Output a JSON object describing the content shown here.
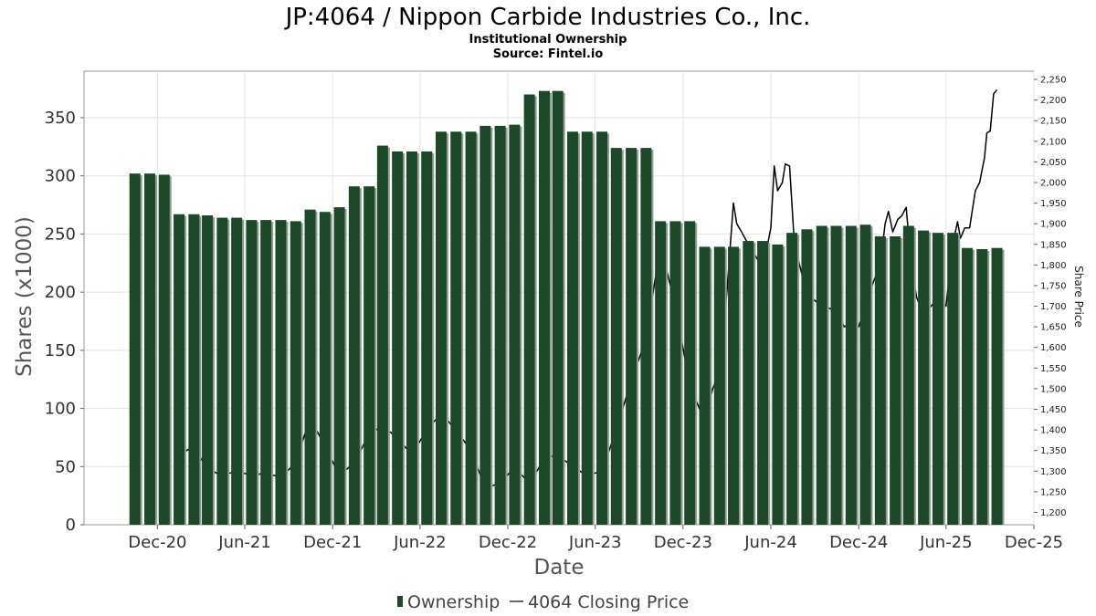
{
  "header": {
    "title": "JP:4064 / Nippon Carbide Industries Co., Inc.",
    "subtitle": "Institutional Ownership",
    "source": "Source: Fintel.io"
  },
  "legend": {
    "ownership_label": "Ownership",
    "price_label": "4064 Closing Price"
  },
  "colors": {
    "bar": "#1c4a28",
    "bar_shadow": "#9a9a9a",
    "line": "#000000",
    "grid": "#e2e2e2",
    "frame": "#999999"
  },
  "chart_data": {
    "type": "bar",
    "title": "JP:4064 / Nippon Carbide Industries Co., Inc.",
    "xlabel": "Date",
    "ylabel": "Shares (x1000)",
    "y2label": "Share Price",
    "ylim": [
      0,
      390
    ],
    "y2lim": [
      1170,
      2270
    ],
    "yticks": [
      0,
      50,
      100,
      150,
      200,
      250,
      300,
      350
    ],
    "y2ticks": [
      1200,
      1250,
      1300,
      1350,
      1400,
      1450,
      1500,
      1550,
      1600,
      1650,
      1700,
      1750,
      1800,
      1850,
      1900,
      1950,
      2000,
      2050,
      2100,
      2150,
      2200,
      2250
    ],
    "y2tick_labels": [
      "1,200",
      "1,250",
      "1,300",
      "1,350",
      "1,400",
      "1,450",
      "1,500",
      "1,550",
      "1,600",
      "1,650",
      "1,700",
      "1,750",
      "1,800",
      "1,850",
      "1,900",
      "1,950",
      "2,000",
      "2,050",
      "2,100",
      "2,150",
      "2,200",
      "2,250"
    ],
    "xlim": [
      "2020-07-01",
      "2025-12-01"
    ],
    "xticks": [
      {
        "date": "2020-12-01",
        "label": "Dec-20"
      },
      {
        "date": "2021-06-01",
        "label": "Jun-21"
      },
      {
        "date": "2021-12-01",
        "label": "Dec-21"
      },
      {
        "date": "2022-06-01",
        "label": "Jun-22"
      },
      {
        "date": "2022-12-01",
        "label": "Dec-22"
      },
      {
        "date": "2023-06-01",
        "label": "Jun-23"
      },
      {
        "date": "2023-12-01",
        "label": "Dec-23"
      },
      {
        "date": "2024-06-01",
        "label": "Jun-24"
      },
      {
        "date": "2024-12-01",
        "label": "Dec-24"
      },
      {
        "date": "2025-06-01",
        "label": "Jun-25"
      },
      {
        "date": "2025-12-01",
        "label": "Dec-25"
      }
    ],
    "grid": true,
    "legend_position": "bottom-center",
    "series": [
      {
        "name": "Ownership",
        "type": "bar",
        "axis": "left",
        "points": [
          {
            "x": "2020-10-15",
            "y": 302
          },
          {
            "x": "2020-11-15",
            "y": 302
          },
          {
            "x": "2020-12-15",
            "y": 301
          },
          {
            "x": "2021-01-15",
            "y": 267
          },
          {
            "x": "2021-02-15",
            "y": 267
          },
          {
            "x": "2021-03-15",
            "y": 266
          },
          {
            "x": "2021-04-15",
            "y": 264
          },
          {
            "x": "2021-05-15",
            "y": 264
          },
          {
            "x": "2021-06-15",
            "y": 262
          },
          {
            "x": "2021-07-15",
            "y": 262
          },
          {
            "x": "2021-08-15",
            "y": 262
          },
          {
            "x": "2021-09-15",
            "y": 261
          },
          {
            "x": "2021-10-15",
            "y": 271
          },
          {
            "x": "2021-11-15",
            "y": 269
          },
          {
            "x": "2021-12-15",
            "y": 273
          },
          {
            "x": "2022-01-15",
            "y": 291
          },
          {
            "x": "2022-02-15",
            "y": 291
          },
          {
            "x": "2022-03-15",
            "y": 326
          },
          {
            "x": "2022-04-15",
            "y": 321
          },
          {
            "x": "2022-05-15",
            "y": 321
          },
          {
            "x": "2022-06-15",
            "y": 321
          },
          {
            "x": "2022-07-15",
            "y": 338
          },
          {
            "x": "2022-08-15",
            "y": 338
          },
          {
            "x": "2022-09-15",
            "y": 338
          },
          {
            "x": "2022-10-15",
            "y": 343
          },
          {
            "x": "2022-11-15",
            "y": 343
          },
          {
            "x": "2022-12-15",
            "y": 344
          },
          {
            "x": "2023-01-15",
            "y": 370
          },
          {
            "x": "2023-02-15",
            "y": 373
          },
          {
            "x": "2023-03-15",
            "y": 373
          },
          {
            "x": "2023-04-15",
            "y": 338
          },
          {
            "x": "2023-05-15",
            "y": 338
          },
          {
            "x": "2023-06-15",
            "y": 338
          },
          {
            "x": "2023-07-15",
            "y": 324
          },
          {
            "x": "2023-08-15",
            "y": 324
          },
          {
            "x": "2023-09-15",
            "y": 324
          },
          {
            "x": "2023-10-15",
            "y": 261
          },
          {
            "x": "2023-11-15",
            "y": 261
          },
          {
            "x": "2023-12-15",
            "y": 261
          },
          {
            "x": "2024-01-15",
            "y": 239
          },
          {
            "x": "2024-02-15",
            "y": 239
          },
          {
            "x": "2024-03-15",
            "y": 239
          },
          {
            "x": "2024-04-15",
            "y": 244
          },
          {
            "x": "2024-05-15",
            "y": 244
          },
          {
            "x": "2024-06-15",
            "y": 241
          },
          {
            "x": "2024-07-15",
            "y": 251
          },
          {
            "x": "2024-08-15",
            "y": 254
          },
          {
            "x": "2024-09-15",
            "y": 257
          },
          {
            "x": "2024-10-15",
            "y": 257
          },
          {
            "x": "2024-11-15",
            "y": 257
          },
          {
            "x": "2024-12-15",
            "y": 258
          },
          {
            "x": "2025-01-15",
            "y": 248
          },
          {
            "x": "2025-02-15",
            "y": 248
          },
          {
            "x": "2025-03-15",
            "y": 257
          },
          {
            "x": "2025-04-15",
            "y": 253
          },
          {
            "x": "2025-05-15",
            "y": 251
          },
          {
            "x": "2025-06-15",
            "y": 251
          },
          {
            "x": "2025-07-15",
            "y": 238
          },
          {
            "x": "2025-08-15",
            "y": 237
          },
          {
            "x": "2025-09-15",
            "y": 238
          }
        ]
      },
      {
        "name": "4064 Closing Price",
        "type": "line",
        "axis": "right",
        "points": [
          {
            "x": "2021-01-15",
            "y": 1340
          },
          {
            "x": "2021-02-15",
            "y": 1360
          },
          {
            "x": "2021-03-15",
            "y": 1305
          },
          {
            "x": "2021-04-15",
            "y": 1290
          },
          {
            "x": "2021-05-15",
            "y": 1300
          },
          {
            "x": "2021-06-15",
            "y": 1290
          },
          {
            "x": "2021-07-15",
            "y": 1295
          },
          {
            "x": "2021-08-15",
            "y": 1285
          },
          {
            "x": "2021-09-15",
            "y": 1320
          },
          {
            "x": "2021-10-15",
            "y": 1430
          },
          {
            "x": "2021-11-15",
            "y": 1360
          },
          {
            "x": "2021-12-15",
            "y": 1290
          },
          {
            "x": "2022-01-15",
            "y": 1320
          },
          {
            "x": "2022-02-15",
            "y": 1390
          },
          {
            "x": "2022-03-15",
            "y": 1410
          },
          {
            "x": "2022-04-15",
            "y": 1380
          },
          {
            "x": "2022-05-15",
            "y": 1340
          },
          {
            "x": "2022-06-15",
            "y": 1400
          },
          {
            "x": "2022-07-15",
            "y": 1440
          },
          {
            "x": "2022-08-15",
            "y": 1400
          },
          {
            "x": "2022-09-15",
            "y": 1350
          },
          {
            "x": "2022-10-15",
            "y": 1260
          },
          {
            "x": "2022-11-15",
            "y": 1270
          },
          {
            "x": "2022-12-15",
            "y": 1310
          },
          {
            "x": "2023-01-15",
            "y": 1270
          },
          {
            "x": "2023-02-15",
            "y": 1330
          },
          {
            "x": "2023-03-15",
            "y": 1340
          },
          {
            "x": "2023-04-15",
            "y": 1310
          },
          {
            "x": "2023-05-15",
            "y": 1290
          },
          {
            "x": "2023-06-15",
            "y": 1300
          },
          {
            "x": "2023-07-15",
            "y": 1400
          },
          {
            "x": "2023-08-15",
            "y": 1520
          },
          {
            "x": "2023-09-15",
            "y": 1620
          },
          {
            "x": "2023-10-15",
            "y": 1850
          },
          {
            "x": "2023-11-15",
            "y": 1700
          },
          {
            "x": "2023-12-15",
            "y": 1510
          },
          {
            "x": "2024-01-15",
            "y": 1420
          },
          {
            "x": "2024-02-01",
            "y": 1500
          },
          {
            "x": "2024-02-15",
            "y": 1540
          },
          {
            "x": "2024-03-01",
            "y": 1730
          },
          {
            "x": "2024-03-15",
            "y": 1950
          },
          {
            "x": "2024-03-22",
            "y": 1900
          },
          {
            "x": "2024-04-01",
            "y": 1880
          },
          {
            "x": "2024-04-15",
            "y": 1850
          },
          {
            "x": "2024-05-01",
            "y": 1820
          },
          {
            "x": "2024-05-15",
            "y": 1790
          },
          {
            "x": "2024-06-01",
            "y": 1890
          },
          {
            "x": "2024-06-08",
            "y": 2040
          },
          {
            "x": "2024-06-15",
            "y": 1980
          },
          {
            "x": "2024-06-25",
            "y": 2000
          },
          {
            "x": "2024-07-01",
            "y": 2045
          },
          {
            "x": "2024-07-10",
            "y": 2040
          },
          {
            "x": "2024-07-20",
            "y": 1850
          },
          {
            "x": "2024-08-15",
            "y": 1730
          },
          {
            "x": "2024-09-15",
            "y": 1700
          },
          {
            "x": "2024-10-15",
            "y": 1690
          },
          {
            "x": "2024-11-01",
            "y": 1650
          },
          {
            "x": "2024-11-15",
            "y": 1660
          },
          {
            "x": "2024-12-01",
            "y": 1650
          },
          {
            "x": "2024-12-15",
            "y": 1700
          },
          {
            "x": "2025-01-01",
            "y": 1760
          },
          {
            "x": "2025-01-15",
            "y": 1800
          },
          {
            "x": "2025-01-25",
            "y": 1900
          },
          {
            "x": "2025-02-01",
            "y": 1930
          },
          {
            "x": "2025-02-10",
            "y": 1880
          },
          {
            "x": "2025-02-20",
            "y": 1910
          },
          {
            "x": "2025-03-01",
            "y": 1920
          },
          {
            "x": "2025-03-10",
            "y": 1940
          },
          {
            "x": "2025-03-20",
            "y": 1800
          },
          {
            "x": "2025-04-01",
            "y": 1720
          },
          {
            "x": "2025-04-15",
            "y": 1680
          },
          {
            "x": "2025-05-01",
            "y": 1700
          },
          {
            "x": "2025-05-15",
            "y": 1720
          },
          {
            "x": "2025-06-01",
            "y": 1700
          },
          {
            "x": "2025-06-15",
            "y": 1850
          },
          {
            "x": "2025-06-25",
            "y": 1905
          },
          {
            "x": "2025-07-01",
            "y": 1865
          },
          {
            "x": "2025-07-10",
            "y": 1890
          },
          {
            "x": "2025-07-20",
            "y": 1890
          },
          {
            "x": "2025-08-01",
            "y": 1980
          },
          {
            "x": "2025-08-10",
            "y": 2000
          },
          {
            "x": "2025-08-20",
            "y": 2060
          },
          {
            "x": "2025-08-25",
            "y": 2120
          },
          {
            "x": "2025-09-01",
            "y": 2125
          },
          {
            "x": "2025-09-08",
            "y": 2215
          },
          {
            "x": "2025-09-15",
            "y": 2225
          }
        ]
      }
    ]
  }
}
